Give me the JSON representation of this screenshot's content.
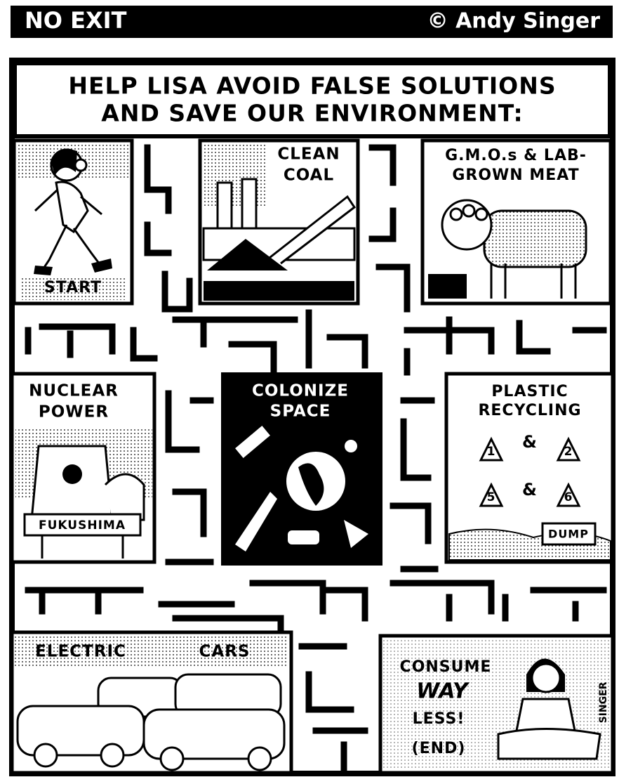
{
  "header": {
    "title": "NO EXIT",
    "credit": "© Andy Singer"
  },
  "instructions": {
    "lines": [
      "HELP LISA AVOID FALSE SOLUTIONS",
      "AND SAVE OUR ENVIRONMENT:"
    ]
  },
  "panels": {
    "start": {
      "label": "START"
    },
    "coal": {
      "lines": [
        "CLEAN",
        "COAL"
      ]
    },
    "gmo": {
      "lines": [
        "G.M.O.s & LAB-",
        "GROWN MEAT"
      ]
    },
    "nuclear": {
      "lines": [
        "NUCLEAR",
        "POWER"
      ],
      "sign": "FUKUSHIMA"
    },
    "space": {
      "lines": [
        "COLONIZE",
        "SPACE"
      ]
    },
    "plastic": {
      "lines": [
        "PLASTIC",
        "RECYCLING"
      ],
      "codes": [
        "1",
        "2",
        "5",
        "6"
      ],
      "connectors": [
        "&",
        "&"
      ],
      "sign": "DUMP"
    },
    "electric": {
      "words": [
        "ELECTRIC",
        "CARS"
      ]
    },
    "consume": {
      "lines": [
        "CONSUME",
        "WAY",
        "LESS!",
        "(END)"
      ],
      "signature": "SINGER"
    }
  }
}
